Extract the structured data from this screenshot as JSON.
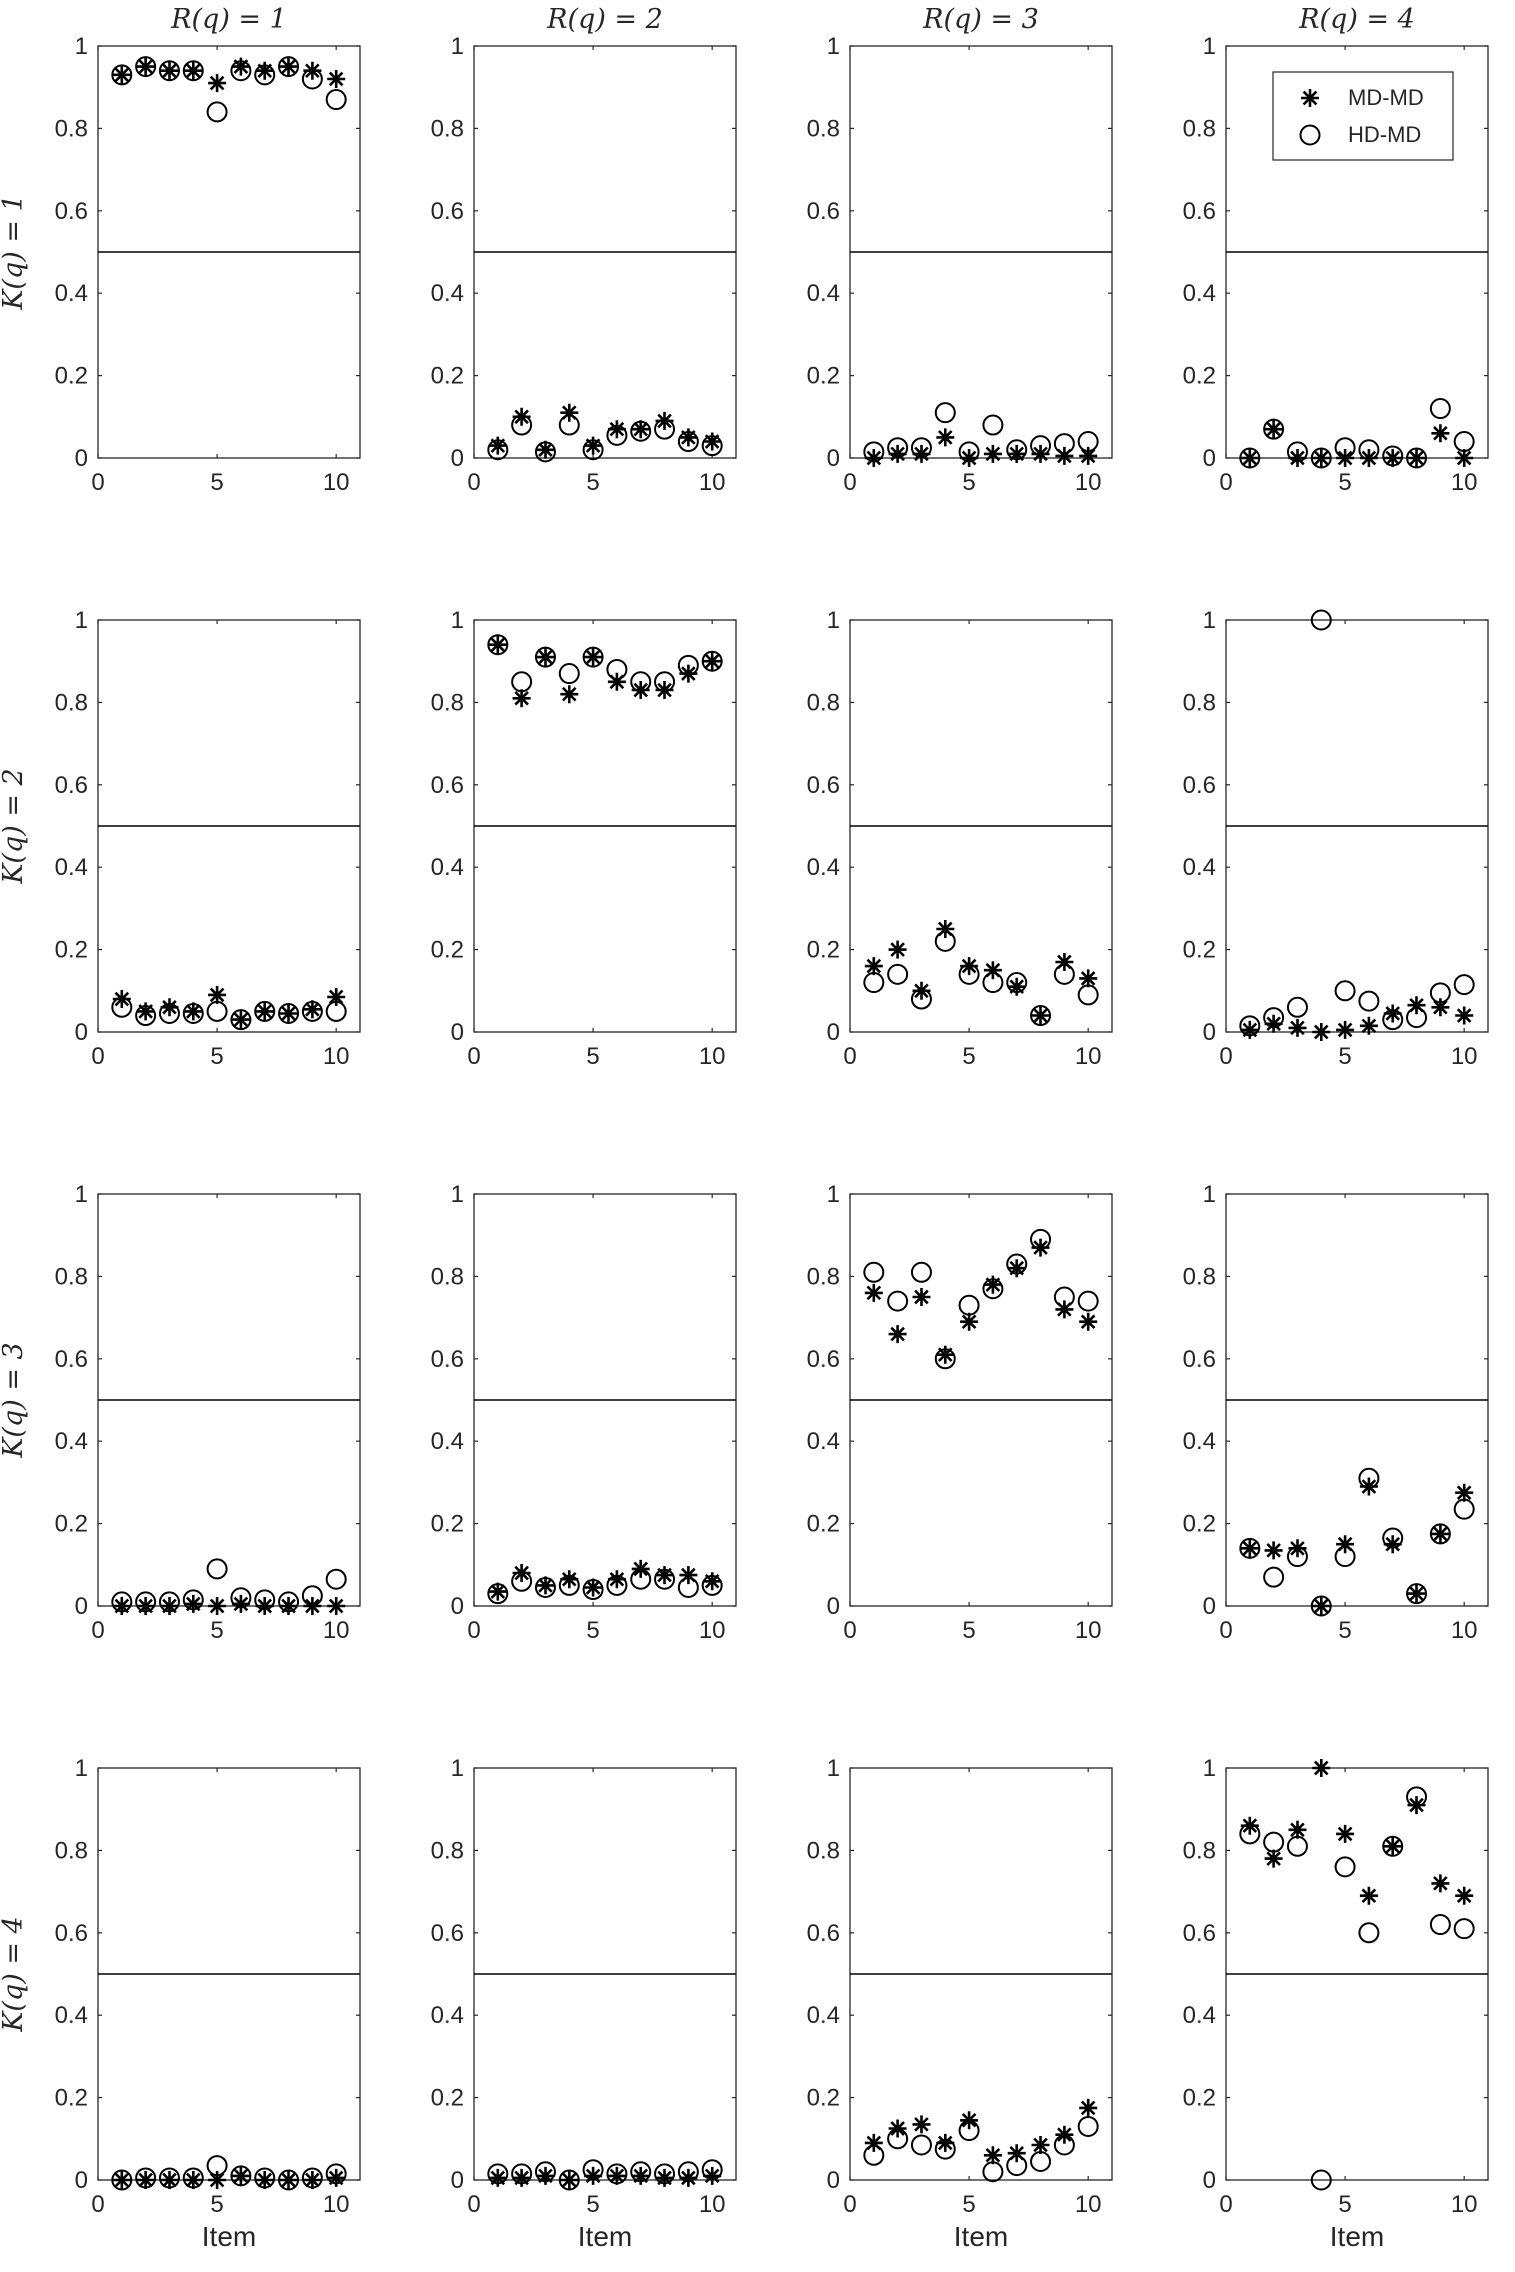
{
  "chart_data": {
    "type": "scatter",
    "layout": "4x4 grid of small multiples",
    "column_titles": [
      "R(q) = 1",
      "R(q) = 2",
      "R(q) = 3",
      "R(q) = 4"
    ],
    "row_titles": [
      "K(q) = 1",
      "K(q) = 2",
      "K(q) = 3",
      "K(q) = 4"
    ],
    "xlabel": "Item",
    "ylabel": "",
    "xlim": [
      0,
      11
    ],
    "ylim": [
      0,
      1
    ],
    "xticks": [
      0,
      5,
      10
    ],
    "yticks": [
      0,
      0.2,
      0.4,
      0.6,
      0.8,
      1
    ],
    "xtick_labels": [
      "0",
      "5",
      "10"
    ],
    "ytick_labels": [
      "0",
      "0.2",
      "0.4",
      "0.6",
      "0.8",
      "1"
    ],
    "reference_line_y": 0.5,
    "grid": false,
    "legend_position": "top-right of panel R(q) = 4, K(q) = 1",
    "x": [
      1,
      2,
      3,
      4,
      5,
      6,
      7,
      8,
      9,
      10
    ],
    "series_info": [
      {
        "name": "MD-MD",
        "marker": "asterisk"
      },
      {
        "name": "HD-MD",
        "marker": "circle"
      }
    ],
    "panels": [
      {
        "row": 1,
        "col": 1,
        "series": [
          {
            "name": "MD-MD",
            "values": [
              0.93,
              0.95,
              0.94,
              0.94,
              0.91,
              0.95,
              0.94,
              0.95,
              0.94,
              0.92
            ]
          },
          {
            "name": "HD-MD",
            "values": [
              0.93,
              0.95,
              0.94,
              0.94,
              0.84,
              0.94,
              0.93,
              0.95,
              0.92,
              0.87
            ]
          }
        ]
      },
      {
        "row": 1,
        "col": 2,
        "series": [
          {
            "name": "MD-MD",
            "values": [
              0.03,
              0.1,
              0.02,
              0.11,
              0.03,
              0.07,
              0.07,
              0.09,
              0.05,
              0.04
            ]
          },
          {
            "name": "HD-MD",
            "values": [
              0.02,
              0.08,
              0.015,
              0.08,
              0.02,
              0.055,
              0.065,
              0.07,
              0.04,
              0.03
            ]
          }
        ]
      },
      {
        "row": 1,
        "col": 3,
        "series": [
          {
            "name": "MD-MD",
            "values": [
              0.0,
              0.01,
              0.01,
              0.05,
              0.0,
              0.01,
              0.01,
              0.01,
              0.005,
              0.005
            ]
          },
          {
            "name": "HD-MD",
            "values": [
              0.015,
              0.025,
              0.025,
              0.11,
              0.015,
              0.08,
              0.02,
              0.03,
              0.035,
              0.04
            ]
          }
        ]
      },
      {
        "row": 1,
        "col": 4,
        "series": [
          {
            "name": "MD-MD",
            "values": [
              0.0,
              0.07,
              0.0,
              0.0,
              0.0,
              0.0,
              0.0,
              0.0,
              0.06,
              0.0
            ]
          },
          {
            "name": "HD-MD",
            "values": [
              0.0,
              0.07,
              0.015,
              0.0,
              0.025,
              0.02,
              0.005,
              0.0,
              0.12,
              0.04
            ]
          }
        ]
      },
      {
        "row": 2,
        "col": 1,
        "series": [
          {
            "name": "MD-MD",
            "values": [
              0.08,
              0.05,
              0.06,
              0.05,
              0.09,
              0.03,
              0.05,
              0.045,
              0.055,
              0.085
            ]
          },
          {
            "name": "HD-MD",
            "values": [
              0.06,
              0.04,
              0.045,
              0.045,
              0.05,
              0.03,
              0.05,
              0.045,
              0.05,
              0.05
            ]
          }
        ]
      },
      {
        "row": 2,
        "col": 2,
        "series": [
          {
            "name": "MD-MD",
            "values": [
              0.94,
              0.81,
              0.91,
              0.82,
              0.91,
              0.85,
              0.83,
              0.83,
              0.87,
              0.9
            ]
          },
          {
            "name": "HD-MD",
            "values": [
              0.94,
              0.85,
              0.91,
              0.87,
              0.91,
              0.88,
              0.85,
              0.85,
              0.89,
              0.9
            ]
          }
        ]
      },
      {
        "row": 2,
        "col": 3,
        "series": [
          {
            "name": "MD-MD",
            "values": [
              0.16,
              0.2,
              0.1,
              0.25,
              0.16,
              0.15,
              0.11,
              0.04,
              0.17,
              0.13
            ]
          },
          {
            "name": "HD-MD",
            "values": [
              0.12,
              0.14,
              0.08,
              0.22,
              0.14,
              0.12,
              0.12,
              0.04,
              0.14,
              0.09
            ]
          }
        ]
      },
      {
        "row": 2,
        "col": 4,
        "series": [
          {
            "name": "MD-MD",
            "values": [
              0.005,
              0.02,
              0.01,
              0.0,
              0.005,
              0.015,
              0.045,
              0.065,
              0.06,
              0.04
            ]
          },
          {
            "name": "HD-MD",
            "values": [
              0.015,
              0.035,
              0.06,
              1.0,
              0.1,
              0.075,
              0.03,
              0.035,
              0.095,
              0.115
            ]
          }
        ]
      },
      {
        "row": 3,
        "col": 1,
        "series": [
          {
            "name": "MD-MD",
            "values": [
              0.0,
              0.0,
              0.0,
              0.005,
              0.0,
              0.005,
              0.0,
              0.0,
              0.0,
              0.0
            ]
          },
          {
            "name": "HD-MD",
            "values": [
              0.01,
              0.01,
              0.01,
              0.015,
              0.09,
              0.02,
              0.015,
              0.01,
              0.025,
              0.065
            ]
          }
        ]
      },
      {
        "row": 3,
        "col": 2,
        "series": [
          {
            "name": "MD-MD",
            "values": [
              0.035,
              0.08,
              0.05,
              0.065,
              0.045,
              0.065,
              0.09,
              0.075,
              0.075,
              0.06
            ]
          },
          {
            "name": "HD-MD",
            "values": [
              0.03,
              0.06,
              0.045,
              0.05,
              0.04,
              0.05,
              0.065,
              0.065,
              0.045,
              0.05
            ]
          }
        ]
      },
      {
        "row": 3,
        "col": 3,
        "series": [
          {
            "name": "MD-MD",
            "values": [
              0.76,
              0.66,
              0.75,
              0.61,
              0.69,
              0.78,
              0.82,
              0.87,
              0.72,
              0.69
            ]
          },
          {
            "name": "HD-MD",
            "values": [
              0.81,
              0.74,
              0.81,
              0.6,
              0.73,
              0.77,
              0.83,
              0.89,
              0.75,
              0.74
            ]
          }
        ]
      },
      {
        "row": 3,
        "col": 4,
        "series": [
          {
            "name": "MD-MD",
            "values": [
              0.14,
              0.135,
              0.14,
              0.0,
              0.15,
              0.29,
              0.15,
              0.03,
              0.175,
              0.275
            ]
          },
          {
            "name": "HD-MD",
            "values": [
              0.14,
              0.07,
              0.12,
              0.0,
              0.12,
              0.31,
              0.165,
              0.03,
              0.175,
              0.235
            ]
          }
        ]
      },
      {
        "row": 4,
        "col": 1,
        "series": [
          {
            "name": "MD-MD",
            "values": [
              0.0,
              0.0,
              0.0,
              0.0,
              0.0,
              0.01,
              0.0,
              0.0,
              0.0,
              0.005
            ]
          },
          {
            "name": "HD-MD",
            "values": [
              0.0,
              0.005,
              0.005,
              0.005,
              0.035,
              0.01,
              0.005,
              0.0,
              0.005,
              0.015
            ]
          }
        ]
      },
      {
        "row": 4,
        "col": 2,
        "series": [
          {
            "name": "MD-MD",
            "values": [
              0.005,
              0.005,
              0.01,
              0.0,
              0.01,
              0.01,
              0.01,
              0.005,
              0.005,
              0.01
            ]
          },
          {
            "name": "HD-MD",
            "values": [
              0.015,
              0.015,
              0.02,
              0.0,
              0.025,
              0.015,
              0.02,
              0.015,
              0.02,
              0.025
            ]
          }
        ]
      },
      {
        "row": 4,
        "col": 3,
        "series": [
          {
            "name": "MD-MD",
            "values": [
              0.09,
              0.125,
              0.135,
              0.09,
              0.145,
              0.06,
              0.065,
              0.085,
              0.11,
              0.175
            ]
          },
          {
            "name": "HD-MD",
            "values": [
              0.06,
              0.1,
              0.085,
              0.075,
              0.12,
              0.02,
              0.035,
              0.045,
              0.085,
              0.13
            ]
          }
        ]
      },
      {
        "row": 4,
        "col": 4,
        "series": [
          {
            "name": "MD-MD",
            "values": [
              0.86,
              0.78,
              0.85,
              1.0,
              0.84,
              0.69,
              0.81,
              0.91,
              0.72,
              0.69
            ]
          },
          {
            "name": "HD-MD",
            "values": [
              0.84,
              0.82,
              0.81,
              0.0,
              0.76,
              0.6,
              0.81,
              0.93,
              0.62,
              0.61
            ]
          }
        ]
      }
    ]
  }
}
